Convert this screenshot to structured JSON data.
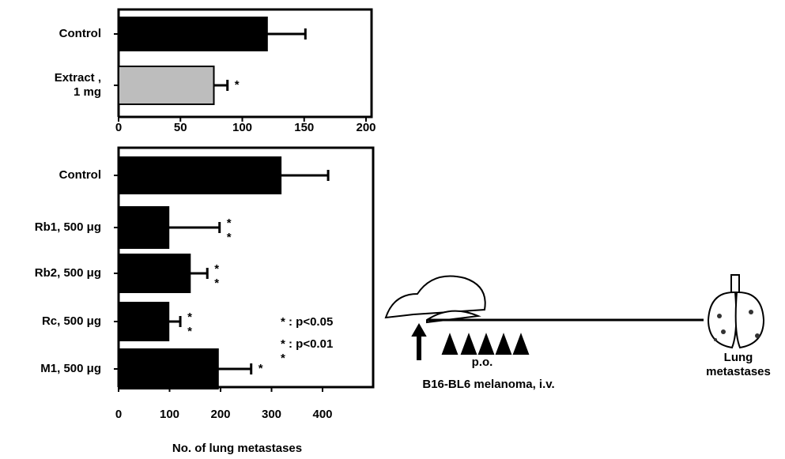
{
  "chart_data": [
    {
      "type": "bar",
      "orientation": "horizontal",
      "categories": [
        "Control",
        "Extract ,\n 1 mg"
      ],
      "values": [
        120,
        77
      ],
      "errors": [
        31,
        11
      ],
      "colors": [
        "#000000",
        "#bdbdbd"
      ],
      "significance": [
        null,
        "*"
      ],
      "xlim": [
        0,
        200
      ],
      "xticks": [
        0,
        50,
        100,
        150,
        200
      ]
    },
    {
      "type": "bar",
      "orientation": "horizontal",
      "categories": [
        "Control",
        "Rb1, 500 μg",
        "Rb2, 500 μg",
        "Rc,  500 μg",
        "M1,  500 μg"
      ],
      "values": [
        318,
        98,
        140,
        98,
        195
      ],
      "errors": [
        93,
        100,
        34,
        23,
        65
      ],
      "colors": [
        "#000000",
        "#000000",
        "#000000",
        "#000000",
        "#000000"
      ],
      "significance": [
        null,
        "*\n*",
        "*\n*",
        "*\n*",
        "*"
      ],
      "xlim": [
        0,
        500
      ],
      "xticks": [
        0,
        100,
        200,
        300,
        400
      ],
      "xlabel": "No. of lung metastases",
      "notes": [
        "*  : p<0.05",
        "*  : p<0.01\n*"
      ]
    }
  ],
  "diagram": {
    "dosing": "p.o.",
    "injection": "B16-BL6 melanoma, i.v.",
    "outcome": "Lung\nmetastases"
  }
}
